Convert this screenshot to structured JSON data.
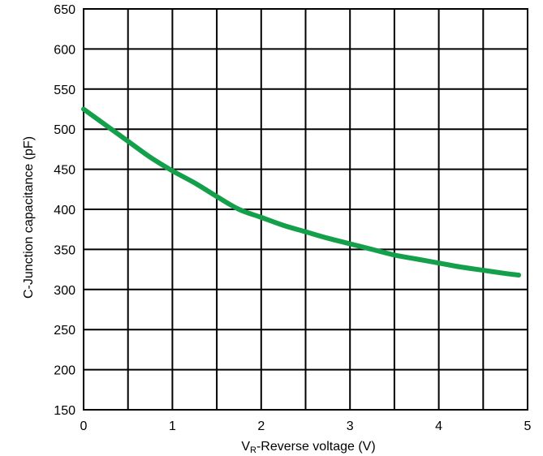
{
  "chart_data": {
    "type": "line",
    "title": "",
    "xlabel_main": "V",
    "xlabel_sub": "R",
    "xlabel_rest": "-Reverse voltage (V)",
    "ylabel": "C-Junction capacitance (pF)",
    "xlim": [
      0,
      5
    ],
    "ylim": [
      150,
      650
    ],
    "x_minor_step": 0.5,
    "y_step": 50,
    "x_ticks": [
      "0",
      "1",
      "2",
      "3",
      "4",
      "5"
    ],
    "y_ticks": [
      "150",
      "200",
      "250",
      "300",
      "350",
      "400",
      "450",
      "500",
      "550",
      "600",
      "650"
    ],
    "grid": true,
    "line_color": "#14a04a",
    "series": [
      {
        "x": [
          0,
          0.25,
          0.5,
          0.75,
          1.0,
          1.25,
          1.5,
          1.75,
          2.0,
          2.25,
          2.5,
          2.75,
          3.0,
          3.25,
          3.5,
          3.75,
          4.0,
          4.25,
          4.5,
          4.75,
          4.9
        ],
        "values": [
          525,
          505,
          485,
          465,
          448,
          433,
          416,
          400,
          390,
          380,
          372,
          364,
          357,
          350,
          343,
          338,
          333,
          328,
          324,
          320,
          318
        ]
      }
    ]
  }
}
